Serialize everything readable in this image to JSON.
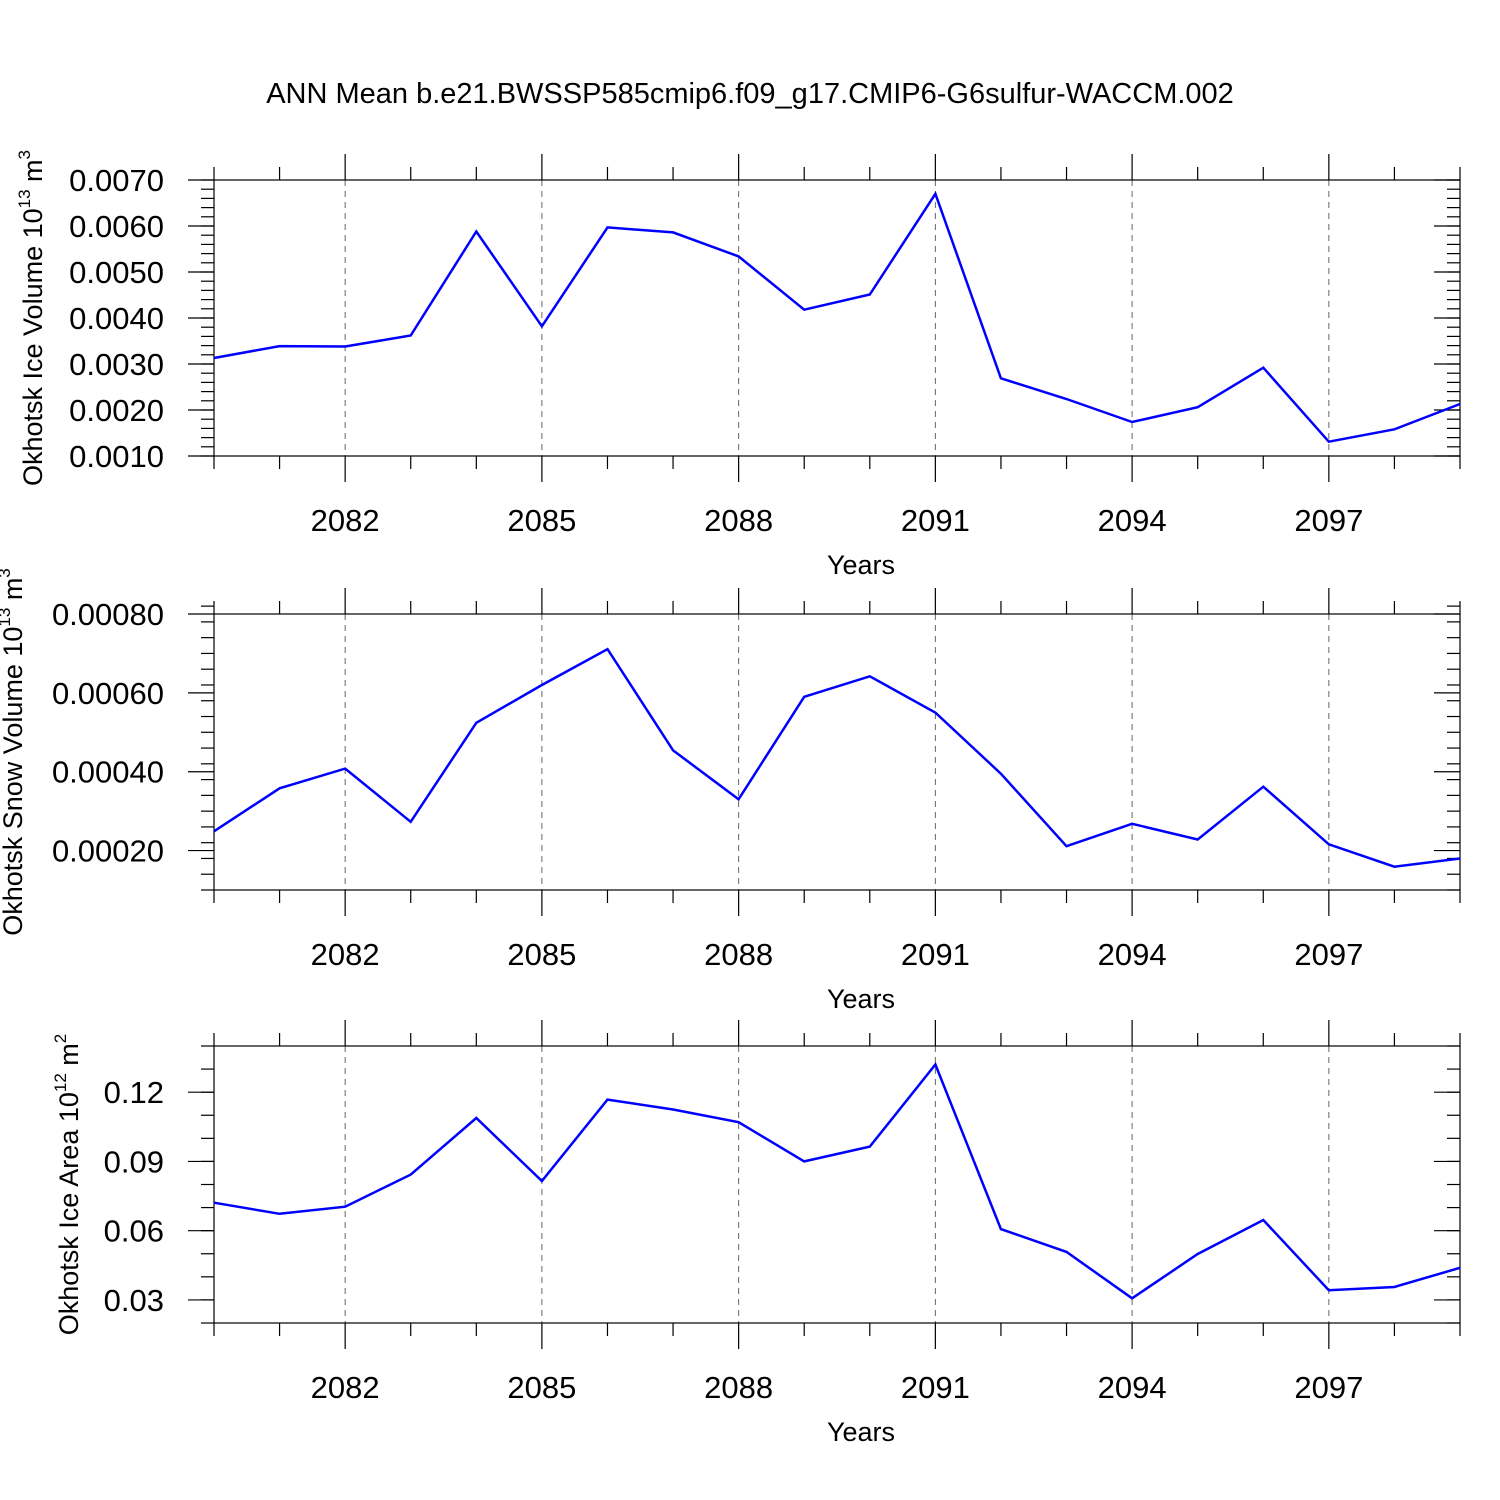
{
  "chart_data": {
    "title": "ANN Mean b.e21.BWSSP585cmip6.f09_g17.CMIP6-G6sulfur-WACCM.002",
    "colors": {
      "line": "#0000ff",
      "axis": "#000000",
      "grid": "#666666"
    },
    "panels": [
      {
        "type": "line",
        "ylabel_main": "Okhotsk Ice Volume 10",
        "ylabel_exp": "13",
        "ylabel_unit": " m",
        "ylabel_unit_exp": "3",
        "xlabel": "Years",
        "xlim": [
          2080,
          2099
        ],
        "ylim": [
          0.001,
          0.007
        ],
        "yticks": [
          0.001,
          0.002,
          0.003,
          0.004,
          0.005,
          0.006,
          0.007
        ],
        "ytick_labels": [
          "0.0010",
          "0.0020",
          "0.0030",
          "0.0040",
          "0.0050",
          "0.0060",
          "0.0070"
        ],
        "yminor_step": 0.0002,
        "xticks": [
          2082,
          2085,
          2088,
          2091,
          2094,
          2097
        ],
        "xtick_labels": [
          "2082",
          "2085",
          "2088",
          "2091",
          "2094",
          "2097"
        ],
        "x": [
          2080,
          2081,
          2082,
          2083,
          2084,
          2085,
          2086,
          2087,
          2088,
          2089,
          2090,
          2091,
          2092,
          2093,
          2094,
          2095,
          2096,
          2097,
          2098,
          2099
        ],
        "values": [
          0.00313,
          0.00339,
          0.00338,
          0.00362,
          0.00588,
          0.00382,
          0.00597,
          0.00586,
          0.00534,
          0.00418,
          0.00451,
          0.0067,
          0.00269,
          0.00224,
          0.00174,
          0.00206,
          0.00292,
          0.00131,
          0.00158,
          0.00213
        ]
      },
      {
        "type": "line",
        "ylabel_main": "Okhotsk Snow Volume 10",
        "ylabel_exp": "13",
        "ylabel_unit": " m",
        "ylabel_unit_exp": "3",
        "xlabel": "Years",
        "xlim": [
          2080,
          2099
        ],
        "ylim": [
          0.0001,
          0.0008
        ],
        "yticks": [
          0.0002,
          0.0004,
          0.0006,
          0.0008
        ],
        "ytick_labels": [
          "0.00020",
          "0.00040",
          "0.00060",
          "0.00080"
        ],
        "yminor_step": 4e-05,
        "xticks": [
          2082,
          2085,
          2088,
          2091,
          2094,
          2097
        ],
        "xtick_labels": [
          "2082",
          "2085",
          "2088",
          "2091",
          "2094",
          "2097"
        ],
        "x": [
          2080,
          2081,
          2082,
          2083,
          2084,
          2085,
          2086,
          2087,
          2088,
          2089,
          2090,
          2091,
          2092,
          2093,
          2094,
          2095,
          2096,
          2097,
          2098,
          2099
        ],
        "values": [
          0.000249,
          0.000358,
          0.000408,
          0.000273,
          0.000524,
          0.00062,
          0.000711,
          0.000454,
          0.00033,
          0.00059,
          0.000642,
          0.00055,
          0.000395,
          0.000211,
          0.000268,
          0.000228,
          0.000362,
          0.000216,
          0.000159,
          0.00018
        ]
      },
      {
        "type": "line",
        "ylabel_main": "Okhotsk Ice Area 10",
        "ylabel_exp": "12",
        "ylabel_unit": " m",
        "ylabel_unit_exp": "2",
        "xlabel": "Years",
        "xlim": [
          2080,
          2099
        ],
        "ylim": [
          0.02,
          0.14
        ],
        "yticks": [
          0.03,
          0.06,
          0.09,
          0.12
        ],
        "ytick_labels": [
          "0.03",
          "0.06",
          "0.09",
          "0.12"
        ],
        "yminor_step": 0.01,
        "xticks": [
          2082,
          2085,
          2088,
          2091,
          2094,
          2097
        ],
        "xtick_labels": [
          "2082",
          "2085",
          "2088",
          "2091",
          "2094",
          "2097"
        ],
        "x": [
          2080,
          2081,
          2082,
          2083,
          2084,
          2085,
          2086,
          2087,
          2088,
          2089,
          2090,
          2091,
          2092,
          2093,
          2094,
          2095,
          2096,
          2097,
          2098,
          2099
        ],
        "values": [
          0.0721,
          0.0673,
          0.0704,
          0.0843,
          0.1088,
          0.0815,
          0.1168,
          0.1125,
          0.107,
          0.09,
          0.0964,
          0.132,
          0.0607,
          0.0508,
          0.0307,
          0.0499,
          0.0646,
          0.0342,
          0.0356,
          0.0439
        ]
      }
    ]
  }
}
